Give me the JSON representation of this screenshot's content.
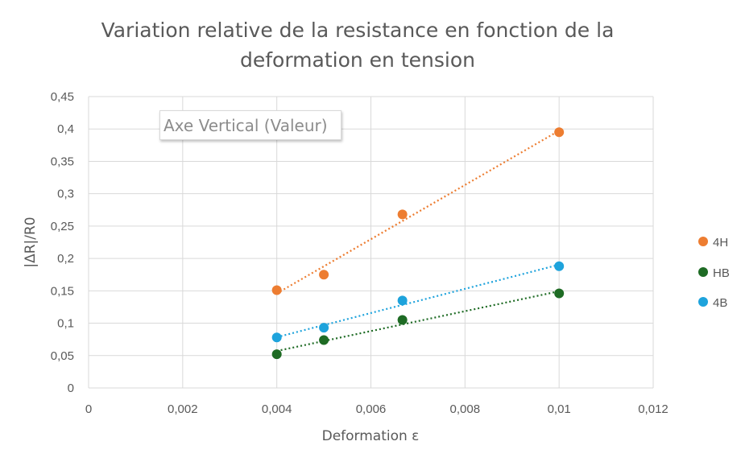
{
  "chart_data": {
    "type": "scatter",
    "title_line1": "Variation relative de la resistance en fonction de la",
    "title_line2": "deformation en tension",
    "xlabel": "Deformation  ε",
    "ylabel": "|ΔR|/R0",
    "xlim": [
      0,
      0.012
    ],
    "ylim": [
      0,
      0.45
    ],
    "x_ticks": [
      "0",
      "0,002",
      "0,004",
      "0,006",
      "0,008",
      "0,01",
      "0,012"
    ],
    "y_ticks": [
      "0",
      "0,05",
      "0,1",
      "0,15",
      "0,2",
      "0,25",
      "0,3",
      "0,35",
      "0,4",
      "0,45"
    ],
    "grid": true,
    "legend_position": "right",
    "trendlines": "linear, dotted",
    "series": [
      {
        "name": "4H",
        "color": "#ed7d31",
        "points": [
          [
            0.004,
            0.151
          ],
          [
            0.005,
            0.175
          ],
          [
            0.00667,
            0.268
          ],
          [
            0.01,
            0.395
          ]
        ]
      },
      {
        "name": "HB",
        "color": "#1e6b24",
        "points": [
          [
            0.004,
            0.052
          ],
          [
            0.005,
            0.074
          ],
          [
            0.00667,
            0.105
          ],
          [
            0.01,
            0.146
          ]
        ]
      },
      {
        "name": "4B",
        "color": "#1ea3dc",
        "points": [
          [
            0.004,
            0.078
          ],
          [
            0.005,
            0.093
          ],
          [
            0.00667,
            0.135
          ],
          [
            0.01,
            0.188
          ]
        ]
      }
    ]
  },
  "tooltip": {
    "text": "Axe Vertical (Valeur)"
  }
}
